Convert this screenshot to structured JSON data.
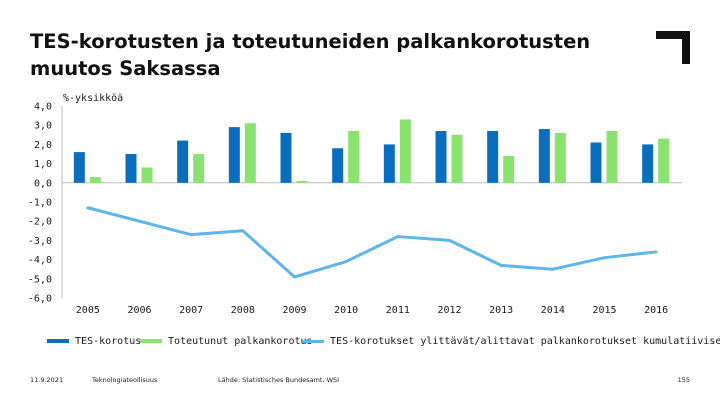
{
  "slide": {
    "title": "TES-korotusten ja toteutuneiden palkankorotusten muutos Saksassa",
    "date": "11.9.2021",
    "organization": "Teknologiateollisuus",
    "source": "Lähde: Statistisches Bundesamt, WSI",
    "page": "155"
  },
  "colors": {
    "tes": "#0a6ebd",
    "actual": "#8ae36f",
    "cumulative": "#5db5ec"
  },
  "chart_data": {
    "type": "bar",
    "ylabel": "%-yksikköä",
    "ylim": [
      -6,
      4
    ],
    "yticks": [
      "4,0",
      "3,0",
      "2,0",
      "1,0",
      "0,0",
      "-1,0",
      "-2,0",
      "-3,0",
      "-4,0",
      "-5,0",
      "-6,0"
    ],
    "categories": [
      "2005",
      "2006",
      "2007",
      "2008",
      "2009",
      "2010",
      "2011",
      "2012",
      "2013",
      "2014",
      "2015",
      "2016"
    ],
    "series": [
      {
        "name": "TES-korotus",
        "type": "bar",
        "values": [
          1.6,
          1.5,
          2.2,
          2.9,
          2.6,
          1.8,
          2.0,
          2.7,
          2.7,
          2.8,
          2.1,
          2.0
        ]
      },
      {
        "name": "Toteutunut palkankorotus",
        "type": "bar",
        "values": [
          0.3,
          0.8,
          1.5,
          3.1,
          0.1,
          2.7,
          3.3,
          2.5,
          1.4,
          2.6,
          2.7,
          2.3
        ]
      },
      {
        "name": "TES-korotukset ylittävät/alittavat palkankorotukset kumulatiivisesti",
        "type": "line",
        "values": [
          -1.3,
          -2.0,
          -2.7,
          -2.5,
          -4.9,
          -4.1,
          -2.8,
          -3.0,
          -4.3,
          -4.5,
          -3.9,
          -3.6
        ]
      }
    ]
  }
}
